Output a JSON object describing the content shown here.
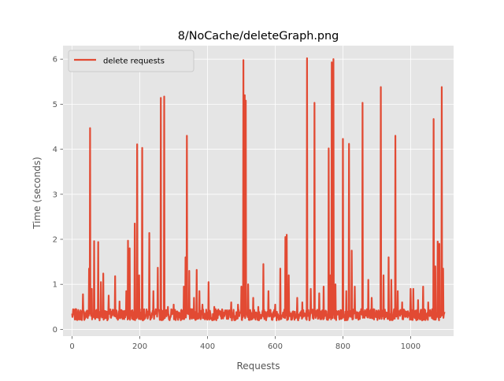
{
  "chart_data": {
    "type": "line",
    "title": "8/NoCache/deleteGraph.png",
    "xlabel": "Requests",
    "ylabel": "Time (seconds)",
    "xlim": [
      -27,
      1127
    ],
    "ylim": [
      -0.15,
      6.3
    ],
    "xticks": [
      0,
      200,
      400,
      600,
      800,
      1000
    ],
    "yticks": [
      0,
      1,
      2,
      3,
      4,
      5,
      6
    ],
    "grid": true,
    "legend_position": "upper left",
    "series": [
      {
        "name": "delete requests",
        "color": "#E24A33",
        "n_points": 1101,
        "baseline_low": 0.2,
        "baseline_high": 0.45,
        "spikes": [
          {
            "x": 32,
            "y": 0.78
          },
          {
            "x": 50,
            "y": 1.35
          },
          {
            "x": 53,
            "y": 4.47
          },
          {
            "x": 58,
            "y": 0.9
          },
          {
            "x": 65,
            "y": 1.96
          },
          {
            "x": 77,
            "y": 1.94
          },
          {
            "x": 85,
            "y": 1.05
          },
          {
            "x": 92,
            "y": 1.24
          },
          {
            "x": 108,
            "y": 0.75
          },
          {
            "x": 127,
            "y": 1.18
          },
          {
            "x": 140,
            "y": 0.62
          },
          {
            "x": 160,
            "y": 0.85
          },
          {
            "x": 165,
            "y": 1.97
          },
          {
            "x": 170,
            "y": 1.8
          },
          {
            "x": 185,
            "y": 2.35
          },
          {
            "x": 192,
            "y": 4.11
          },
          {
            "x": 198,
            "y": 1.2
          },
          {
            "x": 207,
            "y": 4.03
          },
          {
            "x": 228,
            "y": 2.14
          },
          {
            "x": 240,
            "y": 0.85
          },
          {
            "x": 253,
            "y": 1.37
          },
          {
            "x": 262,
            "y": 5.14
          },
          {
            "x": 272,
            "y": 5.17
          },
          {
            "x": 283,
            "y": 0.5
          },
          {
            "x": 300,
            "y": 0.55
          },
          {
            "x": 330,
            "y": 0.95
          },
          {
            "x": 335,
            "y": 1.6
          },
          {
            "x": 339,
            "y": 4.3
          },
          {
            "x": 346,
            "y": 1.3
          },
          {
            "x": 360,
            "y": 0.7
          },
          {
            "x": 368,
            "y": 1.32
          },
          {
            "x": 376,
            "y": 0.85
          },
          {
            "x": 385,
            "y": 0.55
          },
          {
            "x": 403,
            "y": 1.05
          },
          {
            "x": 420,
            "y": 0.5
          },
          {
            "x": 470,
            "y": 0.6
          },
          {
            "x": 490,
            "y": 0.55
          },
          {
            "x": 500,
            "y": 0.95
          },
          {
            "x": 506,
            "y": 5.98
          },
          {
            "x": 510,
            "y": 5.2
          },
          {
            "x": 513,
            "y": 5.08
          },
          {
            "x": 520,
            "y": 1.0
          },
          {
            "x": 535,
            "y": 0.7
          },
          {
            "x": 550,
            "y": 0.5
          },
          {
            "x": 565,
            "y": 1.45
          },
          {
            "x": 580,
            "y": 0.85
          },
          {
            "x": 600,
            "y": 0.55
          },
          {
            "x": 615,
            "y": 1.35
          },
          {
            "x": 630,
            "y": 2.05
          },
          {
            "x": 634,
            "y": 2.1
          },
          {
            "x": 640,
            "y": 1.2
          },
          {
            "x": 665,
            "y": 0.7
          },
          {
            "x": 680,
            "y": 0.6
          },
          {
            "x": 694,
            "y": 6.02
          },
          {
            "x": 705,
            "y": 0.9
          },
          {
            "x": 716,
            "y": 5.03
          },
          {
            "x": 730,
            "y": 0.8
          },
          {
            "x": 743,
            "y": 0.95
          },
          {
            "x": 758,
            "y": 4.02
          },
          {
            "x": 763,
            "y": 1.2
          },
          {
            "x": 767,
            "y": 5.93
          },
          {
            "x": 772,
            "y": 6.0
          },
          {
            "x": 778,
            "y": 1.0
          },
          {
            "x": 800,
            "y": 4.23
          },
          {
            "x": 810,
            "y": 0.85
          },
          {
            "x": 818,
            "y": 4.12
          },
          {
            "x": 826,
            "y": 1.75
          },
          {
            "x": 835,
            "y": 0.95
          },
          {
            "x": 858,
            "y": 5.03
          },
          {
            "x": 875,
            "y": 1.1
          },
          {
            "x": 885,
            "y": 0.7
          },
          {
            "x": 912,
            "y": 5.38
          },
          {
            "x": 920,
            "y": 1.2
          },
          {
            "x": 935,
            "y": 1.6
          },
          {
            "x": 943,
            "y": 1.1
          },
          {
            "x": 955,
            "y": 4.3
          },
          {
            "x": 962,
            "y": 0.85
          },
          {
            "x": 975,
            "y": 0.6
          },
          {
            "x": 1000,
            "y": 0.9
          },
          {
            "x": 1008,
            "y": 0.9
          },
          {
            "x": 1022,
            "y": 0.65
          },
          {
            "x": 1037,
            "y": 0.95
          },
          {
            "x": 1052,
            "y": 0.6
          },
          {
            "x": 1068,
            "y": 4.67
          },
          {
            "x": 1073,
            "y": 1.4
          },
          {
            "x": 1080,
            "y": 1.95
          },
          {
            "x": 1085,
            "y": 1.9
          },
          {
            "x": 1092,
            "y": 5.38
          },
          {
            "x": 1096,
            "y": 1.35
          }
        ]
      }
    ]
  }
}
